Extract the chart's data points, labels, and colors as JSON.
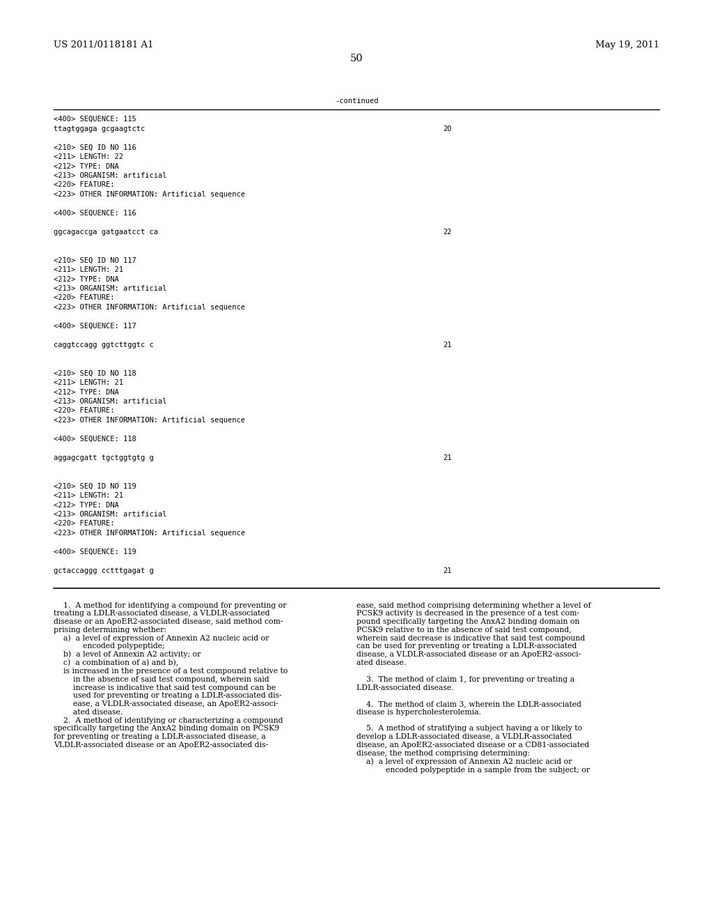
{
  "background_color": "#ffffff",
  "page_number": "50",
  "header_left": "US 2011/0118181 A1",
  "header_right": "May 19, 2011",
  "continued_label": "-continued",
  "seq_lines": [
    [
      "<400> SEQUENCE: 115",
      "",
      ""
    ],
    [
      "ttagtggaga gcgaagtctc",
      "",
      "20"
    ],
    [
      "",
      "",
      ""
    ],
    [
      "<210> SEQ ID NO 116",
      "",
      ""
    ],
    [
      "<211> LENGTH: 22",
      "",
      ""
    ],
    [
      "<212> TYPE: DNA",
      "",
      ""
    ],
    [
      "<213> ORGANISM: artificial",
      "",
      ""
    ],
    [
      "<220> FEATURE:",
      "",
      ""
    ],
    [
      "<223> OTHER INFORMATION: Artificial sequence",
      "",
      ""
    ],
    [
      "",
      "",
      ""
    ],
    [
      "<400> SEQUENCE: 116",
      "",
      ""
    ],
    [
      "",
      "",
      ""
    ],
    [
      "ggcagaccga gatgaatcct ca",
      "",
      "22"
    ],
    [
      "",
      "",
      ""
    ],
    [
      "",
      "",
      ""
    ],
    [
      "<210> SEQ ID NO 117",
      "",
      ""
    ],
    [
      "<211> LENGTH: 21",
      "",
      ""
    ],
    [
      "<212> TYPE: DNA",
      "",
      ""
    ],
    [
      "<213> ORGANISM: artificial",
      "",
      ""
    ],
    [
      "<220> FEATURE:",
      "",
      ""
    ],
    [
      "<223> OTHER INFORMATION: Artificial sequence",
      "",
      ""
    ],
    [
      "",
      "",
      ""
    ],
    [
      "<400> SEQUENCE: 117",
      "",
      ""
    ],
    [
      "",
      "",
      ""
    ],
    [
      "caggtccagg ggtcttggtc c",
      "",
      "21"
    ],
    [
      "",
      "",
      ""
    ],
    [
      "",
      "",
      ""
    ],
    [
      "<210> SEQ ID NO 118",
      "",
      ""
    ],
    [
      "<211> LENGTH: 21",
      "",
      ""
    ],
    [
      "<212> TYPE: DNA",
      "",
      ""
    ],
    [
      "<213> ORGANISM: artificial",
      "",
      ""
    ],
    [
      "<220> FEATURE:",
      "",
      ""
    ],
    [
      "<223> OTHER INFORMATION: Artificial sequence",
      "",
      ""
    ],
    [
      "",
      "",
      ""
    ],
    [
      "<400> SEQUENCE: 118",
      "",
      ""
    ],
    [
      "",
      "",
      ""
    ],
    [
      "aggagcgatt tgctggtgtg g",
      "",
      "21"
    ],
    [
      "",
      "",
      ""
    ],
    [
      "",
      "",
      ""
    ],
    [
      "<210> SEQ ID NO 119",
      "",
      ""
    ],
    [
      "<211> LENGTH: 21",
      "",
      ""
    ],
    [
      "<212> TYPE: DNA",
      "",
      ""
    ],
    [
      "<213> ORGANISM: artificial",
      "",
      ""
    ],
    [
      "<220> FEATURE:",
      "",
      ""
    ],
    [
      "<223> OTHER INFORMATION: Artificial sequence",
      "",
      ""
    ],
    [
      "",
      "",
      ""
    ],
    [
      "<400> SEQUENCE: 119",
      "",
      ""
    ],
    [
      "",
      "",
      ""
    ],
    [
      "gctaccaggg cctttgagat g",
      "",
      "21"
    ]
  ],
  "claims_col1": [
    "    1.  A method for identifying a compound for preventing or",
    "treating a LDLR-associated disease, a VLDLR-associated",
    "disease or an ApoER2-associated disease, said method com-",
    "prising determining whether:",
    "    a)  a level of expression of Annexin A2 nucleic acid or",
    "            encoded polypeptide;",
    "    b)  a level of Annexin A2 activity; or",
    "    c)  a combination of a) and b),",
    "    is increased in the presence of a test compound relative to",
    "        in the absence of said test compound, wherein said",
    "        increase is indicative that said test compound can be",
    "        used for preventing or treating a LDLR-associated dis-",
    "        ease, a VLDLR-associated disease, an ApoER2-associ-",
    "        ated disease.",
    "    2.  A method of identifying or characterizing a compound",
    "specifically targeting the AnxA2 binding domain on PCSK9",
    "for preventing or treating a LDLR-associated disease, a",
    "VLDLR-associated disease or an ApoER2-associated dis-"
  ],
  "claims_col2": [
    "ease, said method comprising determining whether a level of",
    "PCSK9 activity is decreased in the presence of a test com-",
    "pound specifically targeting the AnxA2 binding domain on",
    "PCSK9 relative to in the absence of said test compound,",
    "wherein said decrease is indicative that said test compound",
    "can be used for preventing or treating a LDLR-associated",
    "disease, a VLDLR-associated disease or an ApoER2-associ-",
    "ated disease.",
    "    3.  The method of claim 1, for preventing or treating a",
    "LDLR-associated disease.",
    "    4.  The method of claim 3, wherein the LDLR-associated",
    "disease is hypercholesterolemia.",
    "    5.  A method of stratifying a subject having a or likely to",
    "develop a LDLR-associated disease, a VLDLR-associated",
    "disease, an ApoER2-associated disease or a CD81-associated",
    "disease, the method comprising determining:",
    "    a)  a level of expression of Annexin A2 nucleic acid or",
    "            encoded polypeptide in a sample from the subject; or"
  ],
  "mono_fontsize": 7.5,
  "body_fontsize": 7.8,
  "header_fontsize": 9.5,
  "page_num_fontsize": 10.5
}
